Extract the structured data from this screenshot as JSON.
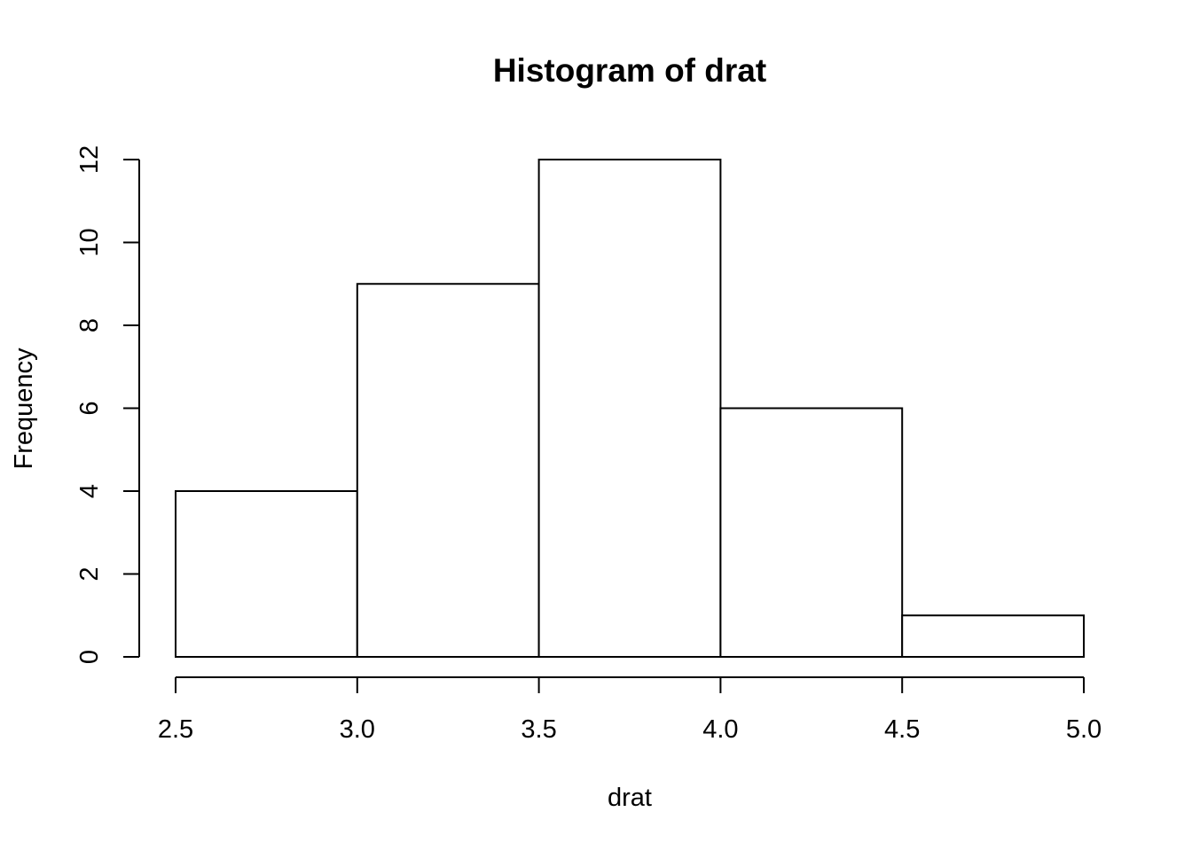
{
  "chart_data": {
    "type": "bar",
    "title": "Histogram of drat",
    "xlabel": "drat",
    "ylabel": "Frequency",
    "bins": [
      {
        "start": 2.5,
        "end": 3.0,
        "count": 4
      },
      {
        "start": 3.0,
        "end": 3.5,
        "count": 9
      },
      {
        "start": 3.5,
        "end": 4.0,
        "count": 12
      },
      {
        "start": 4.0,
        "end": 4.5,
        "count": 6
      },
      {
        "start": 4.5,
        "end": 5.0,
        "count": 1
      }
    ],
    "xlim": [
      2.5,
      5.0
    ],
    "ylim": [
      0,
      12
    ],
    "xticks": [
      2.5,
      3.0,
      3.5,
      4.0,
      4.5,
      5.0
    ],
    "xtick_labels": [
      "2.5",
      "3.0",
      "3.5",
      "4.0",
      "4.5",
      "5.0"
    ],
    "yticks": [
      0,
      2,
      4,
      6,
      8,
      10,
      12
    ],
    "ytick_labels": [
      "0",
      "2",
      "4",
      "6",
      "8",
      "10",
      "12"
    ],
    "grid": false,
    "legend": "none"
  }
}
